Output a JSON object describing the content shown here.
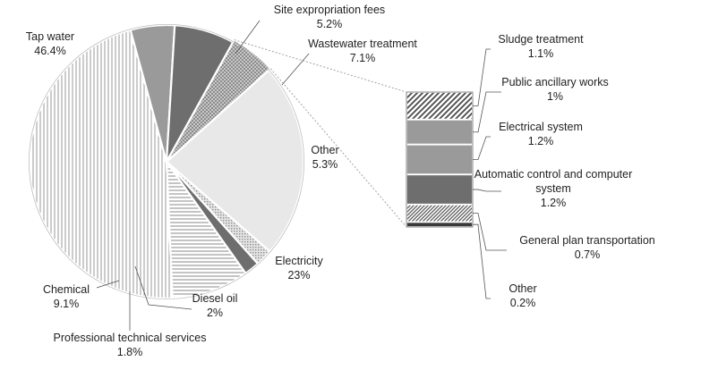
{
  "chart_data": {
    "type": "pie",
    "subtype": "pie-of-bar",
    "slices": [
      {
        "label": "Tap water",
        "value_label": "46.4%",
        "value": 46.4,
        "pattern": "vertical-lines"
      },
      {
        "label": "Site expropriation fees",
        "value_label": "5.2%",
        "value": 5.2,
        "pattern": "medium-gray"
      },
      {
        "label": "Wastewater treatment",
        "value_label": "7.1%",
        "value": 7.1,
        "pattern": "dark-gray"
      },
      {
        "label": "Other",
        "value_label": "5.3%",
        "value": 5.3,
        "pattern": "crosshatch"
      },
      {
        "label": "Electricity",
        "value_label": "23%",
        "value": 23,
        "pattern": "light-gray"
      },
      {
        "label": "Diesel oil",
        "value_label": "2%",
        "value": 2,
        "pattern": "dots"
      },
      {
        "label": "Professional technical services",
        "value_label": "1.8%",
        "value": 1.8,
        "pattern": "dark-gray"
      },
      {
        "label": "Chemical",
        "value_label": "9.1%",
        "value": 9.1,
        "pattern": "horizontal-lines"
      }
    ],
    "breakdown_of": "Other",
    "breakdown": [
      {
        "label": "Sludge treatment",
        "value_label": "1.1%",
        "value": 1.1,
        "pattern": "diagonal-lines"
      },
      {
        "label": "Public ancillary works",
        "value_label": "1%",
        "value": 1.0,
        "pattern": "medium-gray"
      },
      {
        "label": "Electrical system",
        "value_label": "1.2%",
        "value": 1.2,
        "pattern": "medium-gray"
      },
      {
        "label": "Automatic control and computer system",
        "value_label": "1.2%",
        "value": 1.2,
        "pattern": "dark-gray"
      },
      {
        "label": "General plan transportation",
        "value_label": "0.7%",
        "value": 0.7,
        "pattern": "fine-diagonal"
      },
      {
        "label": "Other",
        "value_label": "0.2%",
        "value": 0.2,
        "pattern": "darkest-gray"
      }
    ]
  }
}
